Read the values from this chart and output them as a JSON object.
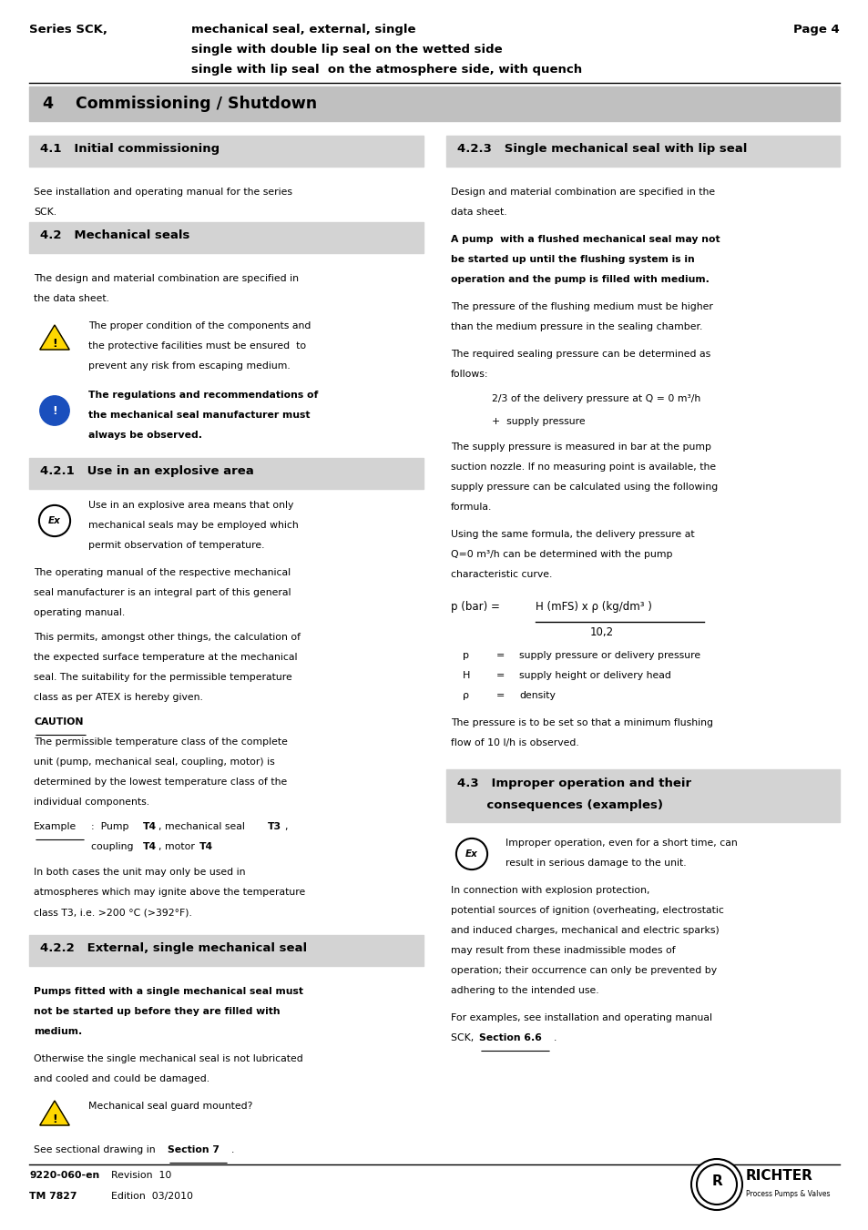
{
  "page_width": 9.54,
  "page_height": 13.51,
  "bg_color": "#ffffff",
  "header": {
    "series_bold": "Series SCK,",
    "series_rest_line1": "mechanical seal, external, single",
    "series_rest_line2": "single with double lip seal on the wetted side",
    "series_rest_line3": "single with lip seal  on the atmosphere side, with quench",
    "page_label": "Page 4"
  },
  "section4_title": "4    Commissioning / Shutdown",
  "sec41_title": "4.1   Initial commissioning",
  "sec42_title": "4.2   Mechanical seals",
  "sec421_title": "4.2.1   Use in an explosive area",
  "sec422_title": "4.2.2   External, single mechanical seal",
  "sec423_title": "4.2.3   Single mechanical seal with lip seal",
  "sec423_vars": [
    [
      "p",
      "=",
      "supply pressure or delivery pressure"
    ],
    [
      "H",
      "=",
      "supply height or delivery head"
    ],
    [
      "ρ",
      "=",
      "density"
    ]
  ],
  "footer_left_bold": "9220-060-en",
  "footer_left1": "Revision  10",
  "footer_left2": "TM 7827",
  "footer_left3": "Edition  03/2010",
  "colors": {
    "section_bg": "#c0c0c0",
    "subsection_bg": "#d3d3d3"
  }
}
